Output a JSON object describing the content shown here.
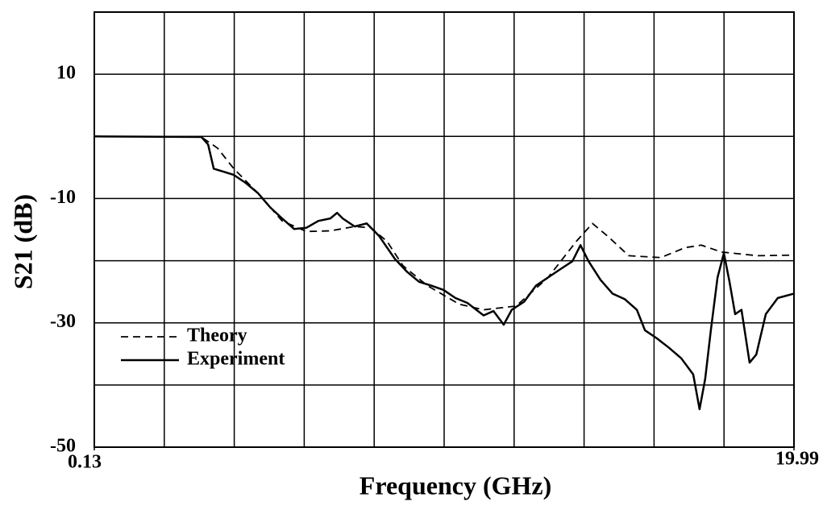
{
  "chart_data": {
    "type": "line",
    "xlabel": "Frequency (GHz)",
    "ylabel": "S21 (dB)",
    "xlim": [
      0.13,
      19.99
    ],
    "xticks": [
      0.13,
      19.99
    ],
    "x_grid_divisions": 10,
    "ylim": [
      -50,
      20
    ],
    "yticks": [
      -50,
      -30,
      -10,
      10
    ],
    "y_grid_lines": [
      -50,
      -40,
      -30,
      -20,
      -10,
      0,
      10,
      20
    ],
    "grid": true,
    "legend": "lower left",
    "series": [
      {
        "name": "Theory",
        "color": "#000000",
        "dash": true,
        "x": [
          0.13,
          3.17,
          3.63,
          4.09,
          4.77,
          5.46,
          6.15,
          6.83,
          7.52,
          7.98,
          8.44,
          8.89,
          9.58,
          10.49,
          11.18,
          12.1,
          13.01,
          13.81,
          14.27,
          14.73,
          15.3,
          16.21,
          16.9,
          17.36,
          17.93,
          18.96,
          19.99
        ],
        "values": [
          0,
          -0.1,
          -1.9,
          -5.2,
          -9.1,
          -13.6,
          -15.3,
          -15.2,
          -14.5,
          -14.7,
          -16.9,
          -20.8,
          -24.0,
          -27.0,
          -27.9,
          -27.3,
          -22.7,
          -16.9,
          -14.0,
          -16.2,
          -19.2,
          -19.5,
          -17.9,
          -17.5,
          -18.6,
          -19.2,
          -19.1
        ]
      },
      {
        "name": "Experiment",
        "color": "#000000",
        "dash": false,
        "x": [
          0.13,
          3.17,
          3.36,
          3.52,
          3.75,
          4.09,
          4.43,
          4.77,
          5.12,
          5.46,
          5.8,
          6.15,
          6.49,
          6.83,
          7.02,
          7.18,
          7.52,
          7.86,
          8.21,
          8.66,
          9.01,
          9.35,
          9.69,
          10.04,
          10.38,
          10.72,
          11.18,
          11.46,
          11.75,
          11.98,
          12.33,
          12.67,
          13.01,
          13.35,
          13.7,
          13.93,
          14.16,
          14.5,
          14.84,
          15.19,
          15.53,
          15.76,
          16.1,
          16.44,
          16.79,
          17.13,
          17.31,
          17.47,
          17.63,
          17.82,
          18.0,
          18.16,
          18.32,
          18.5,
          18.73,
          18.92,
          19.19,
          19.53,
          19.99
        ],
        "values": [
          0,
          -0.1,
          -1.3,
          -5.2,
          -5.6,
          -6.2,
          -7.5,
          -9.1,
          -11.4,
          -13.2,
          -14.9,
          -14.7,
          -13.6,
          -13.2,
          -12.3,
          -13.2,
          -14.5,
          -14.0,
          -16.0,
          -19.7,
          -21.8,
          -23.4,
          -24.0,
          -24.7,
          -26.0,
          -26.8,
          -28.8,
          -28.1,
          -30.3,
          -27.9,
          -26.6,
          -24.0,
          -22.7,
          -21.4,
          -20.1,
          -17.5,
          -20.1,
          -23.1,
          -25.3,
          -26.2,
          -27.9,
          -31.2,
          -32.5,
          -34.0,
          -35.7,
          -38.3,
          -43.9,
          -39.0,
          -31.2,
          -22.7,
          -18.8,
          -23.4,
          -28.6,
          -27.9,
          -36.4,
          -35.1,
          -28.6,
          -26.0,
          -25.3
        ]
      }
    ]
  }
}
